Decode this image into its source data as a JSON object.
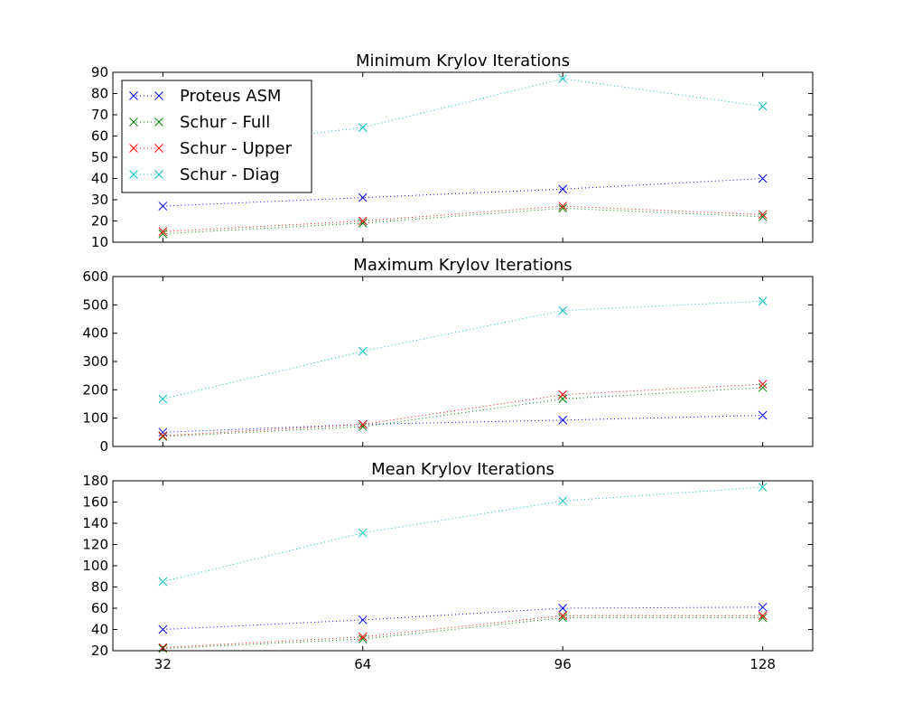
{
  "chart_data": [
    {
      "type": "line",
      "title": "Minimum Krylov Iterations",
      "x": [
        32,
        64,
        96,
        128
      ],
      "ylim": [
        10,
        90
      ],
      "yticks": [
        10,
        20,
        30,
        40,
        50,
        60,
        70,
        80,
        90
      ],
      "legend": "upper-left",
      "series": [
        {
          "name": "Proteus ASM",
          "color": "#0000ff",
          "values": [
            27,
            31,
            35,
            40
          ]
        },
        {
          "name": "Schur - Full",
          "color": "#008000",
          "values": [
            14,
            19,
            26,
            22
          ]
        },
        {
          "name": "Schur - Upper",
          "color": "#ff0000",
          "values": [
            15,
            20,
            27,
            23
          ]
        },
        {
          "name": "Schur - Diag",
          "color": "#00bfbf",
          "values": [
            53,
            64,
            87,
            74
          ]
        }
      ]
    },
    {
      "type": "line",
      "title": "Maximum Krylov Iterations",
      "x": [
        32,
        64,
        96,
        128
      ],
      "ylim": [
        0,
        600
      ],
      "yticks": [
        0,
        100,
        200,
        300,
        400,
        500,
        600
      ],
      "series": [
        {
          "name": "Proteus ASM",
          "color": "#0000ff",
          "values": [
            50,
            78,
            93,
            110
          ]
        },
        {
          "name": "Schur - Full",
          "color": "#008000",
          "values": [
            35,
            70,
            168,
            208
          ]
        },
        {
          "name": "Schur - Upper",
          "color": "#ff0000",
          "values": [
            38,
            78,
            183,
            220
          ]
        },
        {
          "name": "Schur - Diag",
          "color": "#00bfbf",
          "values": [
            168,
            336,
            480,
            513
          ]
        }
      ]
    },
    {
      "type": "line",
      "title": "Mean Krylov Iterations",
      "x": [
        32,
        64,
        96,
        128
      ],
      "xticks": [
        "32",
        "64",
        "96",
        "128"
      ],
      "ylim": [
        20,
        180
      ],
      "yticks": [
        20,
        40,
        60,
        80,
        100,
        120,
        140,
        160,
        180
      ],
      "series": [
        {
          "name": "Proteus ASM",
          "color": "#0000ff",
          "values": [
            40,
            49,
            60,
            61
          ]
        },
        {
          "name": "Schur - Full",
          "color": "#008000",
          "values": [
            22,
            31,
            51,
            51
          ]
        },
        {
          "name": "Schur - Upper",
          "color": "#ff0000",
          "values": [
            23,
            33,
            53,
            53
          ]
        },
        {
          "name": "Schur - Diag",
          "color": "#00bfbf",
          "values": [
            85,
            131,
            161,
            174
          ]
        }
      ]
    }
  ]
}
